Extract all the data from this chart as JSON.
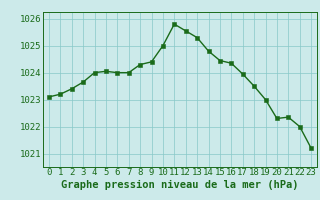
{
  "x": [
    0,
    1,
    2,
    3,
    4,
    5,
    6,
    7,
    8,
    9,
    10,
    11,
    12,
    13,
    14,
    15,
    16,
    17,
    18,
    19,
    20,
    21,
    22,
    23
  ],
  "y": [
    1023.1,
    1023.2,
    1023.4,
    1023.65,
    1024.0,
    1024.05,
    1024.0,
    1024.0,
    1024.3,
    1024.4,
    1025.0,
    1025.8,
    1025.55,
    1025.3,
    1024.8,
    1024.45,
    1024.35,
    1023.95,
    1023.5,
    1023.0,
    1022.3,
    1022.35,
    1022.0,
    1021.2
  ],
  "line_color": "#1a6b1a",
  "marker_color": "#1a6b1a",
  "bg_color": "#cceaea",
  "grid_color": "#88c8c8",
  "axis_color": "#1a6b1a",
  "xlabel": "Graphe pression niveau de la mer (hPa)",
  "ylim_min": 1020.5,
  "ylim_max": 1026.25,
  "yticks": [
    1021,
    1022,
    1023,
    1024,
    1025,
    1026
  ],
  "xticks": [
    0,
    1,
    2,
    3,
    4,
    5,
    6,
    7,
    8,
    9,
    10,
    11,
    12,
    13,
    14,
    15,
    16,
    17,
    18,
    19,
    20,
    21,
    22,
    23
  ],
  "xlabel_fontsize": 7.5,
  "tick_fontsize": 6.5,
  "line_width": 1.0,
  "marker_size": 2.5
}
